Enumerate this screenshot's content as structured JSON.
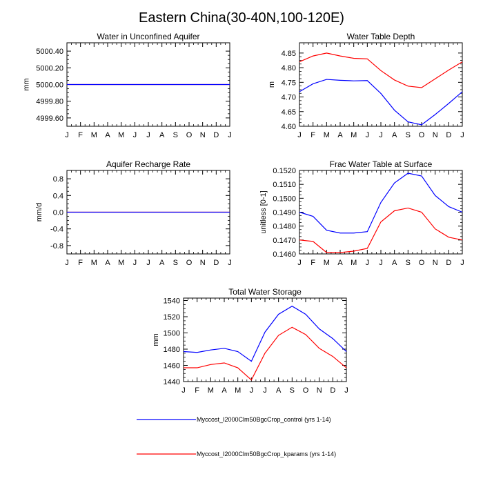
{
  "title": "Eastern China(30-40N,100-120E)",
  "colors": {
    "control": "#0000ff",
    "kparams": "#ff0000",
    "axes": "#000000"
  },
  "months": [
    "J",
    "F",
    "M",
    "A",
    "M",
    "J",
    "J",
    "A",
    "S",
    "O",
    "N",
    "D",
    "J"
  ],
  "legend": {
    "items": [
      {
        "label": "Myccost_I2000Clm50BgcCrop_control (yrs 1-14)",
        "color": "#0000ff"
      },
      {
        "label": "Myccost_I2000Clm50BgcCrop_kparams (yrs 1-14)",
        "color": "#ff0000"
      }
    ]
  },
  "chart_data": [
    {
      "type": "line",
      "title": "Water in Unconfined Aquifer",
      "ylabel": "mm",
      "ylim": [
        4999.5,
        5000.5
      ],
      "yticks": [
        4999.6,
        4999.8,
        5000.0,
        5000.2,
        5000.4
      ],
      "ytick_labels": [
        "4999.60",
        "4999.80",
        "5000.00",
        "5000.20",
        "5000.40"
      ],
      "x": [
        "J",
        "F",
        "M",
        "A",
        "M",
        "J",
        "J",
        "A",
        "S",
        "O",
        "N",
        "D",
        "J"
      ],
      "series": [
        {
          "color": "#0000ff",
          "values": [
            5000,
            5000,
            5000,
            5000,
            5000,
            5000,
            5000,
            5000,
            5000,
            5000,
            5000,
            5000,
            5000
          ]
        },
        {
          "color": "#ff0000",
          "values": [
            5000,
            5000,
            5000,
            5000,
            5000,
            5000,
            5000,
            5000,
            5000,
            5000,
            5000,
            5000,
            5000
          ]
        }
      ]
    },
    {
      "type": "line",
      "title": "Water Table Depth",
      "ylabel": "m",
      "ylim": [
        4.6,
        4.885
      ],
      "yticks": [
        4.6,
        4.65,
        4.7,
        4.75,
        4.8,
        4.85
      ],
      "ytick_labels": [
        "4.60",
        "4.65",
        "4.70",
        "4.75",
        "4.80",
        "4.85"
      ],
      "x": [
        "J",
        "F",
        "M",
        "A",
        "M",
        "J",
        "J",
        "A",
        "S",
        "O",
        "N",
        "D",
        "J"
      ],
      "series": [
        {
          "color": "#0000ff",
          "values": [
            4.718,
            4.745,
            4.76,
            4.757,
            4.755,
            4.756,
            4.712,
            4.655,
            4.615,
            4.605,
            4.64,
            4.678,
            4.718
          ]
        },
        {
          "color": "#ff0000",
          "values": [
            4.82,
            4.84,
            4.85,
            4.84,
            4.832,
            4.83,
            4.79,
            4.758,
            4.737,
            4.732,
            4.762,
            4.792,
            4.82
          ]
        }
      ]
    },
    {
      "type": "line",
      "title": "Aquifer Recharge Rate",
      "ylabel": "mm/d",
      "ylim": [
        -1.0,
        1.0
      ],
      "yticks": [
        -0.8,
        -0.4,
        0.0,
        0.4,
        0.8
      ],
      "ytick_labels": [
        "-0.8",
        "-0.4",
        "0.0",
        "0.4",
        "0.8"
      ],
      "x": [
        "J",
        "F",
        "M",
        "A",
        "M",
        "J",
        "J",
        "A",
        "S",
        "O",
        "N",
        "D",
        "J"
      ],
      "series": [
        {
          "color": "#0000ff",
          "values": [
            0,
            0,
            0,
            0,
            0,
            0,
            0,
            0,
            0,
            0,
            0,
            0,
            0
          ]
        },
        {
          "color": "#ff0000",
          "values": [
            0,
            0,
            0,
            0,
            0,
            0,
            0,
            0,
            0,
            0,
            0,
            0,
            0
          ]
        }
      ]
    },
    {
      "type": "line",
      "title": "Frac Water Table at Surface",
      "ylabel": "unitless [0-1]",
      "ylim": [
        0.146,
        0.152
      ],
      "yticks": [
        0.146,
        0.147,
        0.148,
        0.149,
        0.15,
        0.151,
        0.152
      ],
      "ytick_labels": [
        "0.1460",
        "0.1470",
        "0.1480",
        "0.1490",
        "0.1500",
        "0.1510",
        "0.1520"
      ],
      "x": [
        "J",
        "F",
        "M",
        "A",
        "M",
        "J",
        "J",
        "A",
        "S",
        "O",
        "N",
        "D",
        "J"
      ],
      "series": [
        {
          "color": "#0000ff",
          "values": [
            0.149,
            0.1487,
            0.1477,
            0.1475,
            0.1475,
            0.1476,
            0.1497,
            0.1511,
            0.1518,
            0.1516,
            0.1502,
            0.1494,
            0.149
          ]
        },
        {
          "color": "#ff0000",
          "values": [
            0.147,
            0.1469,
            0.1461,
            0.1461,
            0.1462,
            0.1464,
            0.1483,
            0.1491,
            0.1493,
            0.149,
            0.1478,
            0.1472,
            0.147
          ]
        }
      ]
    },
    {
      "type": "line",
      "title": "Total Water Storage",
      "ylabel": "mm",
      "ylim": [
        1440,
        1543
      ],
      "yticks": [
        1440,
        1460,
        1480,
        1500,
        1520,
        1540
      ],
      "ytick_labels": [
        "1440",
        "1460",
        "1480",
        "1500",
        "1520",
        "1540"
      ],
      "x": [
        "J",
        "F",
        "M",
        "A",
        "M",
        "J",
        "J",
        "A",
        "S",
        "O",
        "N",
        "D",
        "J"
      ],
      "series": [
        {
          "color": "#0000ff",
          "values": [
            1477,
            1476,
            1479,
            1481,
            1477,
            1465,
            1501,
            1523,
            1533,
            1523,
            1505,
            1493,
            1477
          ]
        },
        {
          "color": "#ff0000",
          "values": [
            1457,
            1457,
            1461,
            1463,
            1457,
            1442,
            1475,
            1497,
            1507,
            1498,
            1481,
            1471,
            1457
          ]
        }
      ]
    }
  ]
}
